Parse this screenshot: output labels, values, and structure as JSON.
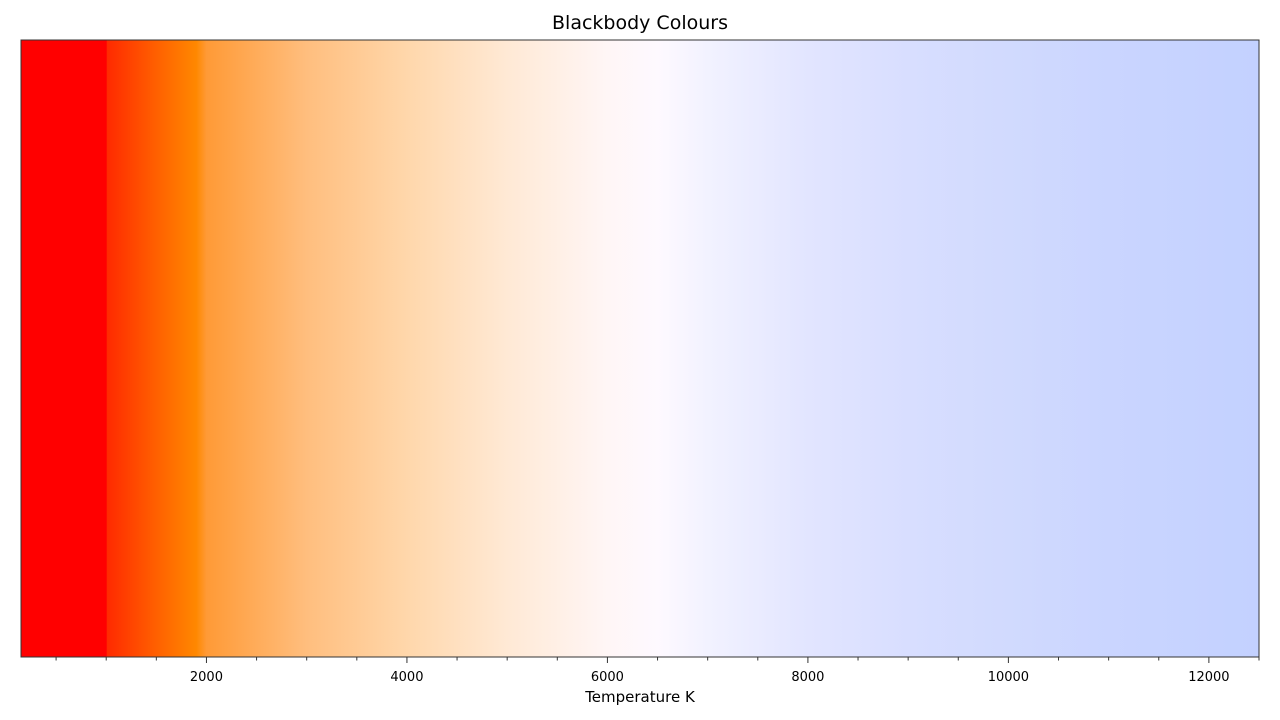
{
  "chart_data": {
    "type": "heatmap",
    "title": "Blackbody Colours",
    "xlabel": "Temperature K",
    "ylabel": "",
    "xlim": [
      150,
      12500
    ],
    "grid": false,
    "legend": "none",
    "x_ticks": [
      2000,
      4000,
      6000,
      8000,
      10000,
      12000
    ],
    "x_tick_labels": [
      "2000",
      "4000",
      "6000",
      "8000",
      "10000",
      "12000"
    ],
    "x_minor_ticks": [
      500,
      1000,
      1500,
      2500,
      3000,
      3500,
      4500,
      5000,
      5500,
      6500,
      7000,
      7500,
      8500,
      9000,
      9500,
      10500,
      11000,
      11500,
      12500
    ],
    "colour_stops": [
      {
        "temperature": 150,
        "color": "#ff0000"
      },
      {
        "temperature": 1000,
        "color": "#ff0000"
      },
      {
        "temperature": 1010,
        "color": "#ff2a00"
      },
      {
        "temperature": 1500,
        "color": "#ff6000"
      },
      {
        "temperature": 1900,
        "color": "#ff8800"
      },
      {
        "temperature": 2000,
        "color": "#ff9a36"
      },
      {
        "temperature": 3000,
        "color": "#ffbe7e"
      },
      {
        "temperature": 4000,
        "color": "#ffd7ab"
      },
      {
        "temperature": 5000,
        "color": "#ffe9d5"
      },
      {
        "temperature": 6000,
        "color": "#fff6f6"
      },
      {
        "temperature": 6500,
        "color": "#fef9ff"
      },
      {
        "temperature": 7000,
        "color": "#f2f2ff"
      },
      {
        "temperature": 8000,
        "color": "#e2e5ff"
      },
      {
        "temperature": 9000,
        "color": "#d8deff"
      },
      {
        "temperature": 10000,
        "color": "#d1dafe"
      },
      {
        "temperature": 11000,
        "color": "#cad5ff"
      },
      {
        "temperature": 12500,
        "color": "#c3d1ff"
      }
    ]
  }
}
